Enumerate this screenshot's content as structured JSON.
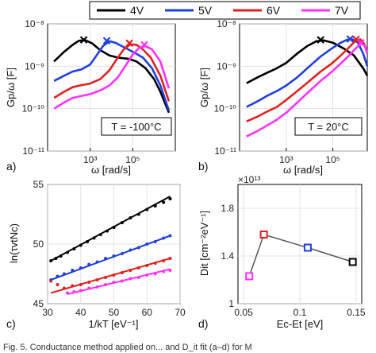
{
  "legend": {
    "entries": [
      {
        "label": "4V",
        "color": "#000000"
      },
      {
        "label": "5V",
        "color": "#1f3fe0"
      },
      {
        "label": "6V",
        "color": "#e02020"
      },
      {
        "label": "7V",
        "color": "#ff30ff"
      }
    ]
  },
  "panels": {
    "a": {
      "letter": "a)",
      "annotation": "T = -100°C",
      "ylabel": "Gp/ω [F]",
      "xlabel": "ω [rad/s]"
    },
    "b": {
      "letter": "b)",
      "annotation": "T = 20°C",
      "ylabel": "Gp/ω [F]",
      "xlabel": "ω [rad/s]"
    },
    "c": {
      "letter": "c)",
      "ylabel": "ln(τvtNc)",
      "xlabel": "1/kT [eV⁻¹]"
    },
    "d": {
      "letter": "d)",
      "ylabel": "Dit [cm⁻²eV⁻¹]",
      "xlabel": "Ec-Et [eV]",
      "multiplier": "×10¹³"
    }
  },
  "caption": "Fig. 5. Conductance method applied on... and D_it fit (a–d) for M",
  "chart_data": [
    {
      "panel": "a",
      "type": "line",
      "xlabel": "ω [rad/s]",
      "ylabel": "Gp/ω [F]",
      "x_scale": "log",
      "y_scale": "log",
      "xlim": [
        10.0,
        10000000.0
      ],
      "ylim": [
        1e-11,
        1e-08
      ],
      "x_ticks": [
        {
          "v": 1000,
          "label": "10³"
        },
        {
          "v": 100000,
          "label": "10⁵"
        }
      ],
      "y_ticks": [
        {
          "v": 1e-11,
          "label": "10⁻¹¹"
        },
        {
          "v": 1e-10,
          "label": "10⁻¹⁰"
        },
        {
          "v": 1e-09,
          "label": "10⁻⁹"
        },
        {
          "v": 1e-08,
          "label": "10⁻⁸"
        }
      ],
      "series": [
        {
          "name": "4V",
          "color": "#000000",
          "x": [
            20,
            60,
            150,
            300,
            600,
            1200,
            3000,
            8000,
            20000,
            60000,
            150000,
            400000,
            1000000,
            2000000,
            5000000
          ],
          "y": [
            1.3e-09,
            2.2e-09,
            3.2e-09,
            4e-09,
            4.1e-09,
            3.5e-09,
            2.4e-09,
            1.8e-09,
            1.6e-09,
            1.5e-09,
            1.3e-09,
            9e-10,
            5e-10,
            2.5e-10,
            8e-11
          ],
          "peak": {
            "x": 500,
            "y": 4.2e-09
          }
        },
        {
          "name": "5V",
          "color": "#1f3fe0",
          "x": [
            20,
            60,
            150,
            400,
            1000,
            2000,
            4000,
            8000,
            15000,
            40000,
            100000,
            300000,
            800000,
            2000000,
            5000000
          ],
          "y": [
            4.5e-10,
            6e-10,
            7.5e-10,
            8.5e-10,
            1.1e-09,
            1.8e-09,
            3e-09,
            3.9e-09,
            3.6e-09,
            2.8e-09,
            2.2e-09,
            1.6e-09,
            9e-10,
            3.5e-10,
            9e-11
          ],
          "peak": {
            "x": 6000,
            "y": 4e-09
          }
        },
        {
          "name": "6V",
          "color": "#e02020",
          "x": [
            20,
            60,
            150,
            400,
            1000,
            3000,
            8000,
            20000,
            40000,
            80000,
            150000,
            300000,
            700000,
            2000000,
            5000000
          ],
          "y": [
            1.8e-10,
            2.5e-10,
            3.2e-10,
            3.6e-10,
            3.9e-10,
            5e-10,
            8e-10,
            1.6e-09,
            2.6e-09,
            3.3e-09,
            3.2e-09,
            2.5e-09,
            1.6e-09,
            6e-10,
            1.5e-10
          ],
          "peak": {
            "x": 70000,
            "y": 3.5e-09
          }
        },
        {
          "name": "7V",
          "color": "#ff30ff",
          "x": [
            20,
            60,
            150,
            400,
            1000,
            3000,
            8000,
            20000,
            50000,
            100000,
            200000,
            400000,
            800000,
            2000000,
            5000000
          ],
          "y": [
            1e-10,
            1.4e-10,
            1.8e-10,
            2e-10,
            2.2e-10,
            2.7e-10,
            3.5e-10,
            5.5e-10,
            1.1e-09,
            1.9e-09,
            2.7e-09,
            3e-09,
            2.5e-09,
            1.3e-09,
            3e-10
          ],
          "peak": {
            "x": 350000,
            "y": 3.2e-09
          }
        }
      ]
    },
    {
      "panel": "b",
      "type": "line",
      "xlabel": "ω [rad/s]",
      "ylabel": "Gp/ω [F]",
      "x_scale": "log",
      "y_scale": "log",
      "xlim": [
        10.0,
        3000000.0
      ],
      "ylim": [
        1e-11,
        1e-08
      ],
      "x_ticks": [
        {
          "v": 1000,
          "label": "10³"
        },
        {
          "v": 100000,
          "label": "10⁵"
        }
      ],
      "y_ticks": [
        {
          "v": 1e-11,
          "label": "10⁻¹¹"
        },
        {
          "v": 1e-10,
          "label": "10⁻¹⁰"
        },
        {
          "v": 1e-09,
          "label": "10⁻⁹"
        },
        {
          "v": 1e-08,
          "label": "10⁻⁸"
        }
      ],
      "series": [
        {
          "name": "4V",
          "color": "#000000",
          "x": [
            20,
            60,
            150,
            400,
            1000,
            3000,
            8000,
            20000,
            40000,
            100000,
            300000,
            800000,
            2000000,
            3000000
          ],
          "y": [
            4e-10,
            5.5e-10,
            7e-10,
            9e-10,
            1.2e-09,
            2e-09,
            3e-09,
            3.9e-09,
            4.1e-09,
            3.6e-09,
            2.6e-09,
            1.8e-09,
            9e-10,
            6e-10
          ],
          "peak": {
            "x": 30000,
            "y": 4.2e-09
          }
        },
        {
          "name": "5V",
          "color": "#1f3fe0",
          "x": [
            20,
            60,
            150,
            400,
            1000,
            3000,
            10000,
            30000,
            80000,
            200000,
            400000,
            700000,
            1200000,
            2000000,
            3000000
          ],
          "y": [
            1.1e-10,
            1.5e-10,
            2e-10,
            2.6e-10,
            3.5e-10,
            5.5e-10,
            1e-09,
            1.7e-09,
            2.5e-09,
            3.5e-09,
            4.2e-09,
            4.3e-09,
            3.6e-09,
            2e-09,
            1e-09
          ],
          "peak": {
            "x": 550000,
            "y": 4.4e-09
          }
        },
        {
          "name": "6V",
          "color": "#e02020",
          "x": [
            20,
            60,
            150,
            400,
            1000,
            3000,
            10000,
            30000,
            80000,
            200000,
            500000,
            900000,
            1500000,
            2200000,
            3000000
          ],
          "y": [
            5e-11,
            6.5e-11,
            8.5e-11,
            1.1e-10,
            1.6e-10,
            2.6e-10,
            4.5e-10,
            7.5e-10,
            1.1e-09,
            1.7e-09,
            2.8e-09,
            3.9e-09,
            4.3e-09,
            3.4e-09,
            2e-09
          ],
          "peak": {
            "x": 1000000,
            "y": 4.3e-09
          }
        },
        {
          "name": "7V",
          "color": "#ff30ff",
          "x": [
            20,
            60,
            150,
            400,
            1000,
            3000,
            10000,
            30000,
            80000,
            200000,
            500000,
            1000000,
            1700000,
            2400000,
            3000000
          ],
          "y": [
            2.2e-11,
            3e-11,
            4e-11,
            5.5e-11,
            8e-11,
            1.4e-10,
            2.6e-10,
            4.5e-10,
            7e-10,
            1.1e-09,
            1.8e-09,
            2.7e-09,
            3.5e-09,
            3e-09,
            2e-09
          ],
          "peak": {
            "x": 1600000,
            "y": 3.6e-09
          }
        }
      ]
    },
    {
      "panel": "c",
      "type": "scatter",
      "xlabel": "1/kT [eV⁻¹]",
      "ylabel": "ln(τvtNc)",
      "xlim": [
        30,
        70
      ],
      "ylim": [
        45,
        55
      ],
      "x_ticks": [
        30,
        40,
        50,
        60,
        70
      ],
      "y_ticks": [
        45,
        50,
        55
      ],
      "series": [
        {
          "name": "4V",
          "color": "#000000",
          "x": [
            31,
            32.5,
            34,
            36,
            38,
            40,
            42,
            44,
            46,
            48,
            50,
            52.5,
            55,
            57.5,
            60,
            62.5,
            65,
            67
          ],
          "y": [
            48.6,
            48.8,
            49.0,
            49.3,
            49.6,
            49.9,
            50.2,
            50.5,
            50.8,
            51.1,
            51.4,
            51.8,
            52.2,
            52.5,
            52.9,
            53.2,
            53.5,
            53.8
          ],
          "fit": [
            [
              31,
              48.6
            ],
            [
              67,
              54.0
            ]
          ]
        },
        {
          "name": "5V",
          "color": "#1f3fe0",
          "x": [
            31,
            33,
            35,
            37.5,
            40,
            42.5,
            45,
            47.5,
            50,
            52.5,
            55,
            57.5,
            60,
            62.5,
            65,
            67
          ],
          "y": [
            47.0,
            47.3,
            47.5,
            47.8,
            48.0,
            48.3,
            48.5,
            48.8,
            49.0,
            49.2,
            49.5,
            49.7,
            50.0,
            50.2,
            50.5,
            50.7
          ],
          "fit": [
            [
              31,
              47.0
            ],
            [
              67,
              50.7
            ]
          ]
        },
        {
          "name": "6V",
          "color": "#e02020",
          "x": [
            31,
            33,
            35,
            37.5,
            40,
            42.5,
            45,
            47.5,
            50,
            52.5,
            55,
            57.5,
            60,
            62.5,
            65,
            67
          ],
          "y": [
            46.9,
            46.6,
            46.3,
            46.5,
            46.6,
            46.8,
            47.0,
            47.2,
            47.4,
            47.6,
            47.8,
            48.0,
            48.2,
            48.4,
            48.6,
            48.8
          ],
          "fit": [
            [
              31,
              45.9
            ],
            [
              67,
              48.8
            ]
          ]
        },
        {
          "name": "7V",
          "color": "#ff30ff",
          "x": [
            36,
            38,
            40,
            42.5,
            45,
            47.5,
            50,
            52.5,
            55,
            57.5,
            60,
            62.5,
            65,
            67
          ],
          "y": [
            45.9,
            46.0,
            46.1,
            46.3,
            46.4,
            46.6,
            46.8,
            46.9,
            47.1,
            47.2,
            47.4,
            47.5,
            47.7,
            47.8
          ],
          "fit": [
            [
              36,
              45.8
            ],
            [
              67,
              47.9
            ]
          ]
        }
      ]
    },
    {
      "panel": "d",
      "type": "line",
      "xlabel": "Ec-Et [eV]",
      "ylabel": "Dit [cm⁻²eV⁻¹]",
      "multiplier": "×10¹³",
      "xlim": [
        0.045,
        0.155
      ],
      "ylim": [
        1.0,
        2.0
      ],
      "x_ticks": [
        {
          "v": 0.05,
          "label": "0.05"
        },
        {
          "v": 0.1,
          "label": "0.1"
        },
        {
          "v": 0.15,
          "label": "0.15"
        }
      ],
      "y_ticks": [
        {
          "v": 1.0,
          "label": "1"
        },
        {
          "v": 1.4,
          "label": "1.4"
        },
        {
          "v": 1.8,
          "label": "1.8"
        }
      ],
      "points": [
        {
          "label": "7V",
          "x": 0.055,
          "y": 1.23,
          "color": "#ff30ff"
        },
        {
          "label": "6V",
          "x": 0.068,
          "y": 1.58,
          "color": "#e02020"
        },
        {
          "label": "5V",
          "x": 0.107,
          "y": 1.47,
          "color": "#1f3fe0"
        },
        {
          "label": "4V",
          "x": 0.147,
          "y": 1.35,
          "color": "#000000"
        }
      ]
    }
  ]
}
